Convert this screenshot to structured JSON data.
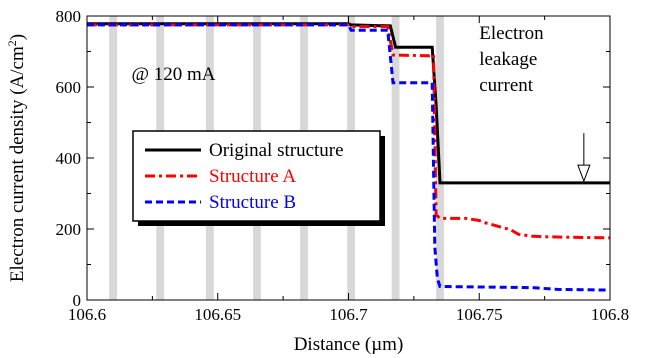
{
  "chart_data": {
    "type": "line",
    "title": "",
    "xlabel": "Distance (µm)",
    "ylabel": "Electron current density (A/cm²)",
    "ylabel_parts": {
      "main": "Electron current density (A/cm",
      "sup": "2",
      "tail": ")"
    },
    "xlim": [
      106.6,
      106.8
    ],
    "ylim": [
      0,
      800
    ],
    "xticks": [
      106.6,
      106.65,
      106.7,
      106.75,
      106.8
    ],
    "xtick_labels": [
      "106.6",
      "106.65",
      "106.7",
      "106.75",
      "106.8"
    ],
    "yticks": [
      0,
      200,
      400,
      600,
      800
    ],
    "ytick_labels": [
      "0",
      "200",
      "400",
      "600",
      "800"
    ],
    "grid": false,
    "legend_position": "center-left",
    "shaded_bands": [
      [
        106.6085,
        106.6115
      ],
      [
        106.6265,
        106.6295
      ],
      [
        106.6455,
        106.6485
      ],
      [
        106.6635,
        106.6665
      ],
      [
        106.6815,
        106.6845
      ],
      [
        106.6995,
        106.7025
      ],
      [
        106.7165,
        106.7195
      ],
      [
        106.7335,
        106.7365
      ]
    ],
    "band_color": "#d8d8d8",
    "series": [
      {
        "name": "Original structure",
        "color": "#000000",
        "dash": "solid",
        "points": [
          [
            106.6,
            778
          ],
          [
            106.7,
            778
          ],
          [
            106.701,
            775
          ],
          [
            106.716,
            772
          ],
          [
            106.718,
            712
          ],
          [
            106.732,
            712
          ],
          [
            106.7335,
            550
          ],
          [
            106.735,
            330
          ],
          [
            106.8,
            330
          ]
        ]
      },
      {
        "name": "Structure A",
        "color": "#ff0000",
        "dash": "dashdot",
        "points": [
          [
            106.6,
            775
          ],
          [
            106.7,
            775
          ],
          [
            106.701,
            770
          ],
          [
            106.715,
            770
          ],
          [
            106.717,
            690
          ],
          [
            106.731,
            688
          ],
          [
            106.7325,
            690
          ],
          [
            106.7335,
            240
          ],
          [
            106.735,
            230
          ],
          [
            106.745,
            230
          ],
          [
            106.75,
            224
          ],
          [
            106.752,
            218
          ],
          [
            106.758,
            206
          ],
          [
            106.762,
            198
          ],
          [
            106.765,
            185
          ],
          [
            106.77,
            180
          ],
          [
            106.775,
            178
          ],
          [
            106.8,
            175
          ]
        ]
      },
      {
        "name": "Structure B",
        "color": "#0000ff",
        "dash": "dashed",
        "points": [
          [
            106.6,
            775
          ],
          [
            106.7,
            775
          ],
          [
            106.701,
            760
          ],
          [
            106.715,
            760
          ],
          [
            106.717,
            612
          ],
          [
            106.732,
            612
          ],
          [
            106.733,
            150
          ],
          [
            106.734,
            60
          ],
          [
            106.735,
            38
          ],
          [
            106.77,
            35
          ],
          [
            106.78,
            30
          ],
          [
            106.8,
            28
          ]
        ]
      }
    ],
    "annotations": [
      {
        "id": "condition",
        "text": "@ 120 mA",
        "x": 106.617,
        "y": 620
      },
      {
        "id": "leakage-line1",
        "text": "Electron",
        "x": 106.75,
        "y": 735
      },
      {
        "id": "leakage-line2",
        "text": "leakage",
        "x": 106.75,
        "y": 662
      },
      {
        "id": "leakage-line3",
        "text": "current",
        "x": 106.75,
        "y": 589
      }
    ],
    "arrow": {
      "x": 106.79,
      "y_from": 470,
      "y_to": 335
    }
  }
}
